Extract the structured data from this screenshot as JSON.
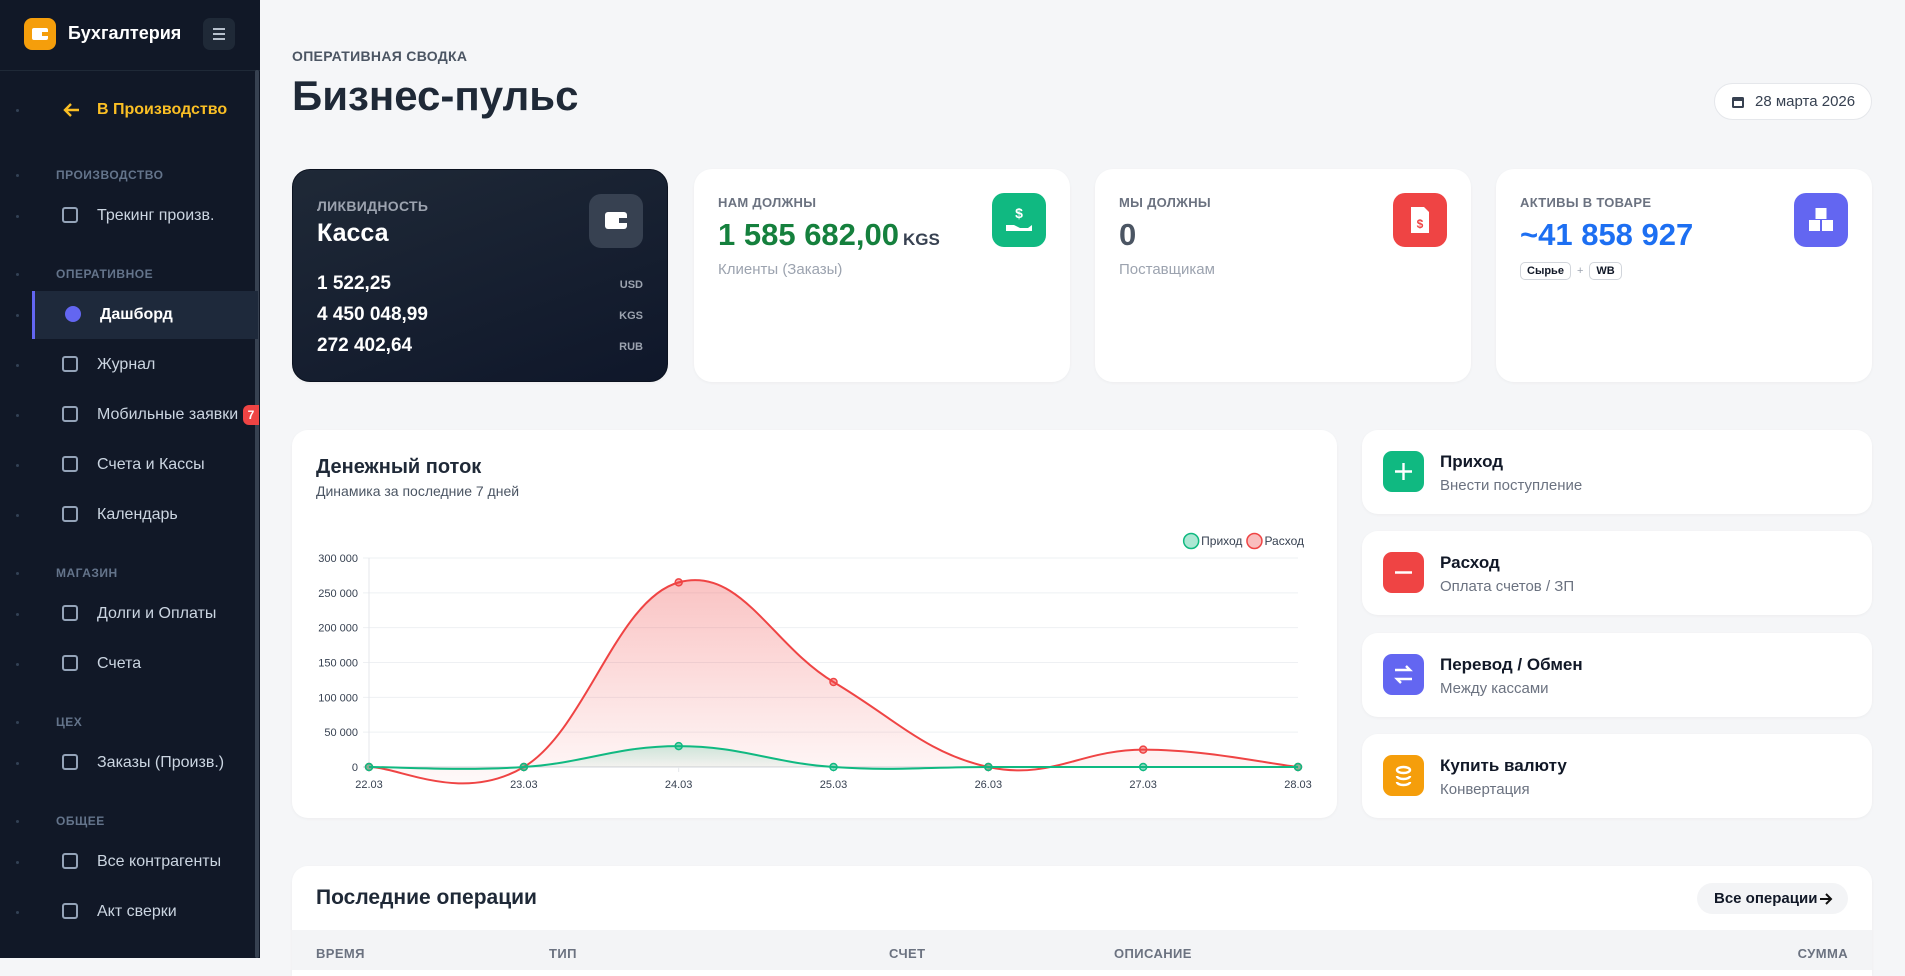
{
  "sidebar": {
    "brand": "Бухгалтерия",
    "back": "В Производство",
    "sections": [
      {
        "title": "ПРОИЗВОДСТВО",
        "items": [
          {
            "label": "Трекинг произв."
          }
        ]
      },
      {
        "title": "ОПЕРАТИВНОЕ",
        "items": [
          {
            "label": "Дашборд",
            "active": true
          },
          {
            "label": "Журнал"
          },
          {
            "label": "Мобильные заявки",
            "badge": "7"
          },
          {
            "label": "Счета и Кассы"
          },
          {
            "label": "Календарь"
          }
        ]
      },
      {
        "title": "МАГАЗИН",
        "items": [
          {
            "label": "Долги и Оплаты"
          },
          {
            "label": "Счета"
          }
        ]
      },
      {
        "title": "ЦЕХ",
        "items": [
          {
            "label": "Заказы (Произв.)"
          }
        ]
      },
      {
        "title": "ОБЩЕЕ",
        "items": [
          {
            "label": "Все контрагенты"
          },
          {
            "label": "Акт сверки"
          }
        ]
      }
    ]
  },
  "header": {
    "kicker": "ОПЕРАТИВНАЯ СВОДКА",
    "title": "Бизнес-пульс",
    "date": "28 марта 2026"
  },
  "cards": {
    "liquidity": {
      "kicker": "ЛИКВИДНОСТЬ",
      "title": "Касса",
      "rows": [
        {
          "amount": "1 522,25",
          "currency": "USD"
        },
        {
          "amount": "4 450 048,99",
          "currency": "KGS"
        },
        {
          "amount": "272 402,64",
          "currency": "RUB"
        }
      ]
    },
    "receivable": {
      "kicker": "НАМ ДОЛЖНЫ",
      "amount": "1 585 682,00",
      "currency": "KGS",
      "note": "Клиенты (Заказы)"
    },
    "payable": {
      "kicker": "МЫ ДОЛЖНЫ",
      "amount": "0",
      "note": "Поставщикам"
    },
    "assets": {
      "kicker": "АКТИВЫ В ТОВАРЕ",
      "amount": "~41 858 927",
      "tags": [
        "Сырье",
        "WB"
      ],
      "tag_separator": "+"
    }
  },
  "chart_data": {
    "type": "line",
    "title": "Денежный поток",
    "subtitle": "Динамика за последние 7 дней",
    "categories": [
      "22.03",
      "23.03",
      "24.03",
      "25.03",
      "26.03",
      "27.03",
      "28.03"
    ],
    "series": [
      {
        "name": "Приход",
        "color": "#10b981",
        "values": [
          0,
          0,
          30000,
          0,
          0,
          0,
          0
        ]
      },
      {
        "name": "Расход",
        "color": "#ef4444",
        "values": [
          0,
          0,
          265000,
          122000,
          0,
          25000,
          0
        ]
      }
    ],
    "ylim": [
      0,
      300000
    ],
    "yticks": [
      0,
      {
        "value": 50000,
        "label": "50 000"
      },
      {
        "value": 100000,
        "label": "100 000"
      },
      {
        "value": 150000,
        "label": "150 000"
      },
      {
        "value": 200000,
        "label": "200 000"
      },
      {
        "value": 250000,
        "label": "250 000"
      },
      {
        "value": 300000,
        "label": "300 000"
      }
    ],
    "grid": true,
    "area": true,
    "legend": "top-right"
  },
  "actions": [
    {
      "title": "Приход",
      "subtitle": "Внести поступление",
      "color": "#10b981"
    },
    {
      "title": "Расход",
      "subtitle": "Оплата счетов / ЗП",
      "color": "#ef4444"
    },
    {
      "title": "Перевод / Обмен",
      "subtitle": "Между кассами",
      "color": "#6366f1"
    },
    {
      "title": "Купить валюту",
      "subtitle": "Конвертация",
      "color": "#f59e0b"
    }
  ],
  "operations": {
    "title": "Последние операции",
    "button": "Все операции",
    "columns": [
      "ВРЕМЯ",
      "ТИП",
      "СЧЕТ",
      "ОПИСАНИЕ",
      "СУММА"
    ]
  }
}
